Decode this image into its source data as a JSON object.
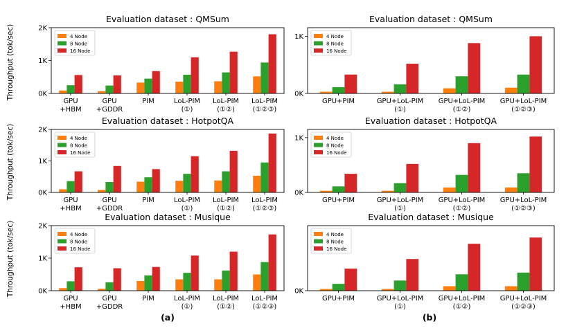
{
  "colors": {
    "4 Node": "#ff7f0e",
    "8 Node": "#2ca02c",
    "16 Node": "#d62728"
  },
  "ylabel": "Throughput (tok/sec)",
  "panel_labels": {
    "a": "(a)",
    "b": "(b)"
  },
  "chart_data": [
    {
      "id": "a-qmsum",
      "type": "bar",
      "title": "Evaluation dataset : QMSum",
      "categories": [
        [
          "GPU",
          "+HBM"
        ],
        [
          "GPU",
          "+GDDR"
        ],
        [
          "PIM"
        ],
        [
          "LoL-PIM",
          "(①)"
        ],
        [
          "LoL-PIM",
          "(①②)"
        ],
        [
          "LoL-PIM",
          "(①②③)"
        ]
      ],
      "series": [
        {
          "name": "4 Node",
          "values": [
            90,
            70,
            330,
            360,
            370,
            520
          ]
        },
        {
          "name": "8 Node",
          "values": [
            250,
            240,
            450,
            570,
            640,
            940
          ]
        },
        {
          "name": "16 Node",
          "values": [
            560,
            550,
            680,
            1100,
            1270,
            1800
          ]
        }
      ],
      "ylim": [
        0,
        2000
      ],
      "yticks": [
        {
          "v": 0,
          "label": "0K"
        },
        {
          "v": 1000,
          "label": "1K"
        },
        {
          "v": 2000,
          "label": "2K"
        }
      ],
      "legend": "top-left"
    },
    {
      "id": "a-hotpotqa",
      "type": "bar",
      "title": "Evaluation dataset : HotpotQA",
      "categories": [
        [
          "GPU",
          "+HBM"
        ],
        [
          "GPU",
          "+GDDR"
        ],
        [
          "PIM"
        ],
        [
          "LoL-PIM",
          "(①)"
        ],
        [
          "LoL-PIM",
          "(①②)"
        ],
        [
          "LoL-PIM",
          "(①②③)"
        ]
      ],
      "series": [
        {
          "name": "4 Node",
          "values": [
            100,
            80,
            340,
            370,
            380,
            530
          ]
        },
        {
          "name": "8 Node",
          "values": [
            360,
            330,
            480,
            590,
            670,
            950
          ]
        },
        {
          "name": "16 Node",
          "values": [
            670,
            840,
            740,
            1150,
            1320,
            1870
          ]
        }
      ],
      "ylim": [
        0,
        2000
      ],
      "yticks": [
        {
          "v": 0,
          "label": "0K"
        },
        {
          "v": 1000,
          "label": "1K"
        },
        {
          "v": 2000,
          "label": "2K"
        }
      ],
      "legend": "top-left"
    },
    {
      "id": "a-musique",
      "type": "bar",
      "title": "Evaluation dataset : Musique",
      "categories": [
        [
          "GPU",
          "+HBM"
        ],
        [
          "GPU",
          "+GDDR"
        ],
        [
          "PIM"
        ],
        [
          "LoL-PIM",
          "(①)"
        ],
        [
          "LoL-PIM",
          "(①②)"
        ],
        [
          "LoL-PIM",
          "(①②③)"
        ]
      ],
      "series": [
        {
          "name": "4 Node",
          "values": [
            80,
            60,
            300,
            350,
            350,
            500
          ]
        },
        {
          "name": "8 Node",
          "values": [
            290,
            260,
            470,
            550,
            620,
            880
          ]
        },
        {
          "name": "16 Node",
          "values": [
            720,
            690,
            730,
            1080,
            1200,
            1730
          ]
        }
      ],
      "ylim": [
        0,
        2000
      ],
      "yticks": [
        {
          "v": 0,
          "label": "0K"
        },
        {
          "v": 1000,
          "label": "1K"
        },
        {
          "v": 2000,
          "label": "2K"
        }
      ],
      "legend": "top-left"
    },
    {
      "id": "b-qmsum",
      "type": "bar",
      "title": "Evaluation dataset : QMSum",
      "categories": [
        [
          "GPU+PIM"
        ],
        [
          "GPU+LoL-PIM",
          "(①)"
        ],
        [
          "GPU+LoL-PIM",
          "(①②)"
        ],
        [
          "GPU+LoL-PIM",
          "(①②③)"
        ]
      ],
      "series": [
        {
          "name": "4 Node",
          "values": [
            30,
            30,
            90,
            100
          ]
        },
        {
          "name": "8 Node",
          "values": [
            110,
            160,
            300,
            330
          ]
        },
        {
          "name": "16 Node",
          "values": [
            330,
            520,
            880,
            1000
          ]
        }
      ],
      "ylim": [
        0,
        1150
      ],
      "yticks": [
        {
          "v": 0,
          "label": "0K"
        },
        {
          "v": 1000,
          "label": "1K"
        }
      ],
      "legend": "top-left"
    },
    {
      "id": "b-hotpotqa",
      "type": "bar",
      "title": "Evaluation dataset : HotpotQA",
      "categories": [
        [
          "GPU+PIM"
        ],
        [
          "GPU+LoL-PIM",
          "(①)"
        ],
        [
          "GPU+LoL-PIM",
          "(①②)"
        ],
        [
          "GPU+LoL-PIM",
          "(①②③)"
        ]
      ],
      "series": [
        {
          "name": "4 Node",
          "values": [
            30,
            30,
            90,
            90
          ]
        },
        {
          "name": "8 Node",
          "values": [
            110,
            170,
            320,
            350
          ]
        },
        {
          "name": "16 Node",
          "values": [
            340,
            520,
            900,
            1020
          ]
        }
      ],
      "ylim": [
        0,
        1150
      ],
      "yticks": [
        {
          "v": 0,
          "label": "0K"
        },
        {
          "v": 1000,
          "label": "1K"
        }
      ],
      "legend": "top-left"
    },
    {
      "id": "b-musique",
      "type": "bar",
      "title": "Evaluation dataset : Musique",
      "categories": [
        [
          "GPU+PIM"
        ],
        [
          "GPU+LoL-PIM",
          "(①)"
        ],
        [
          "GPU+LoL-PIM",
          "(①②)"
        ],
        [
          "GPU+LoL-PIM",
          "(①②③)"
        ]
      ],
      "series": [
        {
          "name": "4 Node",
          "values": [
            30,
            30,
            80,
            80
          ]
        },
        {
          "name": "8 Node",
          "values": [
            120,
            180,
            290,
            320
          ]
        },
        {
          "name": "16 Node",
          "values": [
            390,
            560,
            830,
            940
          ]
        }
      ],
      "ylim": [
        0,
        1150
      ],
      "yticks": [
        {
          "v": 0,
          "label": "0K"
        }
      ],
      "legend": "top-left"
    }
  ]
}
